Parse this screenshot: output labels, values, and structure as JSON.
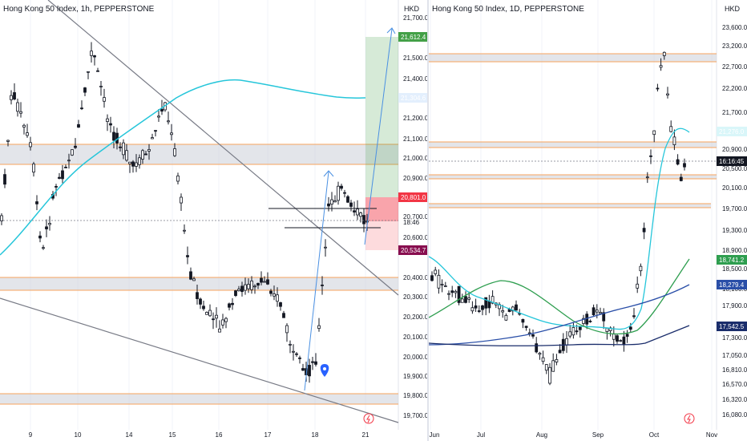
{
  "left": {
    "title": "Hong Kong 50 Index, 1h, PEPPERSTONE",
    "currency": "HKD",
    "price_ticks": [
      "21,700.0",
      "21,600.0",
      "21,500.0",
      "21,400.0",
      "21,300.0",
      "21,200.0",
      "21,100.0",
      "21,000.0",
      "20,900.0",
      "20,700.0",
      "20,600.0",
      "20,400.0",
      "20,300.0",
      "20,200.0",
      "20,100.0",
      "20,000.0",
      "19,900.0",
      "19,800.0",
      "19,700.0"
    ],
    "time_ticks": [
      "9",
      "10",
      "14",
      "15",
      "16",
      "17",
      "18",
      "21"
    ],
    "labels": {
      "target": "21,612.4",
      "mid": "21,304.6",
      "entry": "20,801.0",
      "countdown_price": "20,???",
      "countdown": "18:46",
      "stop": "20,534.7"
    },
    "colors": {
      "up": "#131722",
      "down": "#131722",
      "ma": "#26c6da",
      "target": "#43a047",
      "entry": "#f23645",
      "stop": "#880e4f",
      "mid": "#2962ff"
    }
  },
  "right": {
    "title": "Hong Kong 50 Index, 1D, PEPPERSTONE",
    "currency": "HKD",
    "price_ticks": [
      "23,600.0",
      "23,200.0",
      "22,700.0",
      "22,200.0",
      "21,700.0",
      "21,200.0",
      "20,900.0",
      "20,500.0",
      "20,100.0",
      "19,700.0",
      "19,300.0",
      "18,900.0",
      "18,500.0",
      "18,100.0",
      "17,900.0",
      "17,600.0",
      "17,300.0",
      "17,050.0",
      "16,810.0",
      "16,570.0",
      "16,320.0",
      "16,080.0"
    ],
    "time_ticks": [
      "Jun",
      "Jul",
      "Aug",
      "Sep",
      "Oct",
      "Nov"
    ],
    "labels": {
      "ma_fast": "21,276.0",
      "clock": "16:16:45",
      "ma_green": "18,741.2",
      "ma_blue": "18,279.4",
      "ma_navy": "17,542.5"
    },
    "colors": {
      "ma_fast": "#26c6da",
      "ma_green": "#2e9e4f",
      "ma_blue": "#2a4fa8",
      "ma_navy": "#1a2d6b"
    }
  }
}
